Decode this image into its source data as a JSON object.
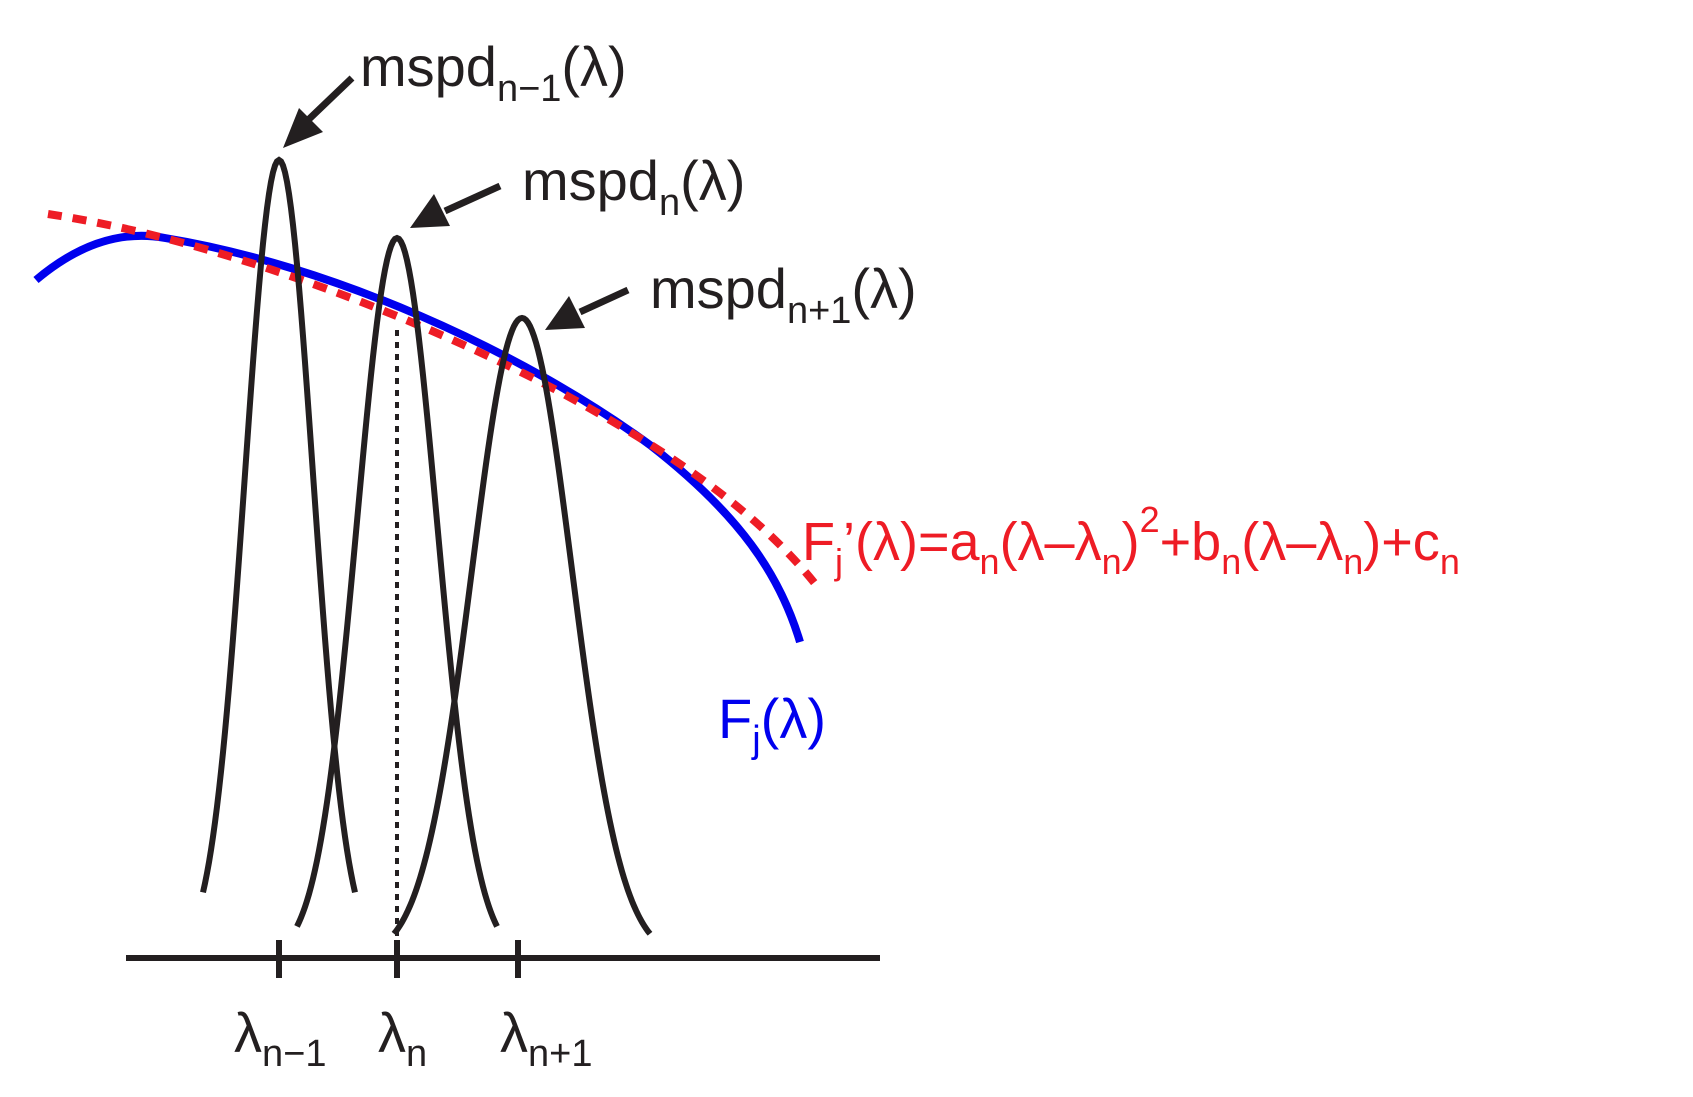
{
  "colors": {
    "peak": "#231f20",
    "function": "#0000ee",
    "approximation": "#ee1c25",
    "guide": "#231f20"
  },
  "peaks": [
    {
      "id": "n-1",
      "label": {
        "base": "mspd",
        "sub": "n−1",
        "arg": "(λ)"
      },
      "tick": {
        "base": "λ",
        "sub": "n−1"
      }
    },
    {
      "id": "n",
      "label": {
        "base": "mspd",
        "sub": "n",
        "arg": "(λ)"
      },
      "tick": {
        "base": "λ",
        "sub": "n"
      }
    },
    {
      "id": "n+1",
      "label": {
        "base": "mspd",
        "sub": "n+1",
        "arg": "(λ)"
      },
      "tick": {
        "base": "λ",
        "sub": "n+1"
      }
    }
  ],
  "function_label": {
    "base": "F",
    "sub": "j",
    "arg": "(λ)"
  },
  "approx_label": {
    "p1": "F",
    "s1": "j",
    "p2": "’(λ)=a",
    "s2": "n",
    "p3": "(λ–λ",
    "s3": "n",
    "p4": ")",
    "sup": "2",
    "p5": "+b",
    "s5": "n",
    "p6": "(λ–λ",
    "s6": "n",
    "p7": ")+c",
    "s7": "n"
  }
}
